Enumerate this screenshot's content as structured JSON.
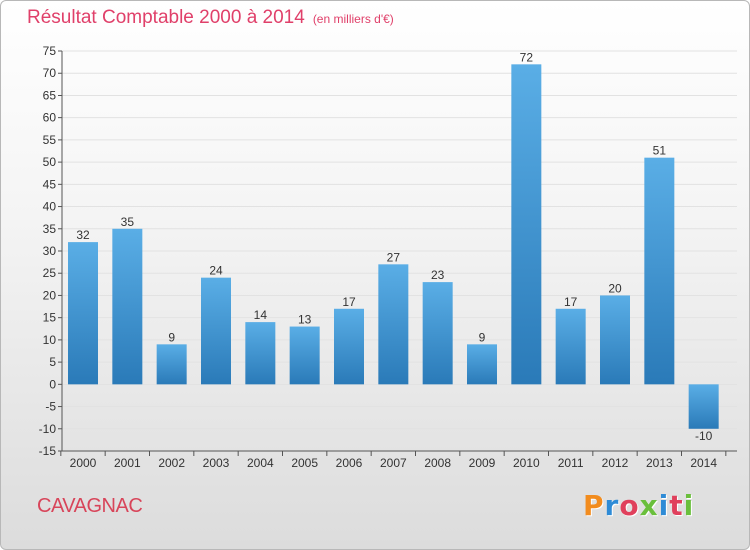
{
  "header": {
    "title": "Résultat Comptable 2000 à 2014",
    "unit": "(en milliers d'€)"
  },
  "footer": {
    "commune": "CAVAGNAC",
    "logo_text": "Proxiti",
    "logo_colors": [
      "#f28c1e",
      "#2e8bd6",
      "#e0405c",
      "#6abf3c",
      "#2e8bd6",
      "#e0405c",
      "#6abf3c"
    ]
  },
  "chart_data": {
    "type": "bar",
    "categories": [
      "2000",
      "2001",
      "2002",
      "2003",
      "2004",
      "2005",
      "2006",
      "2007",
      "2008",
      "2009",
      "2010",
      "2011",
      "2012",
      "2013",
      "2014"
    ],
    "values": [
      32,
      35,
      9,
      24,
      14,
      13,
      17,
      27,
      23,
      9,
      72,
      17,
      20,
      51,
      -10
    ],
    "data_labels": [
      "32",
      "35",
      "9",
      "24",
      "14",
      "13",
      "17",
      "27",
      "23",
      "9",
      "72",
      "17",
      "20",
      "51",
      "-10"
    ],
    "ylim": [
      -15,
      75
    ],
    "yticks": [
      -15,
      -10,
      -5,
      0,
      5,
      10,
      15,
      20,
      25,
      30,
      35,
      40,
      45,
      50,
      55,
      60,
      65,
      70,
      75
    ],
    "grid": true,
    "colors": {
      "bar_light": "#5aaee6",
      "bar_dark": "#2a7ab8",
      "grid": "#e2e2e2",
      "axis": "#555555"
    }
  }
}
